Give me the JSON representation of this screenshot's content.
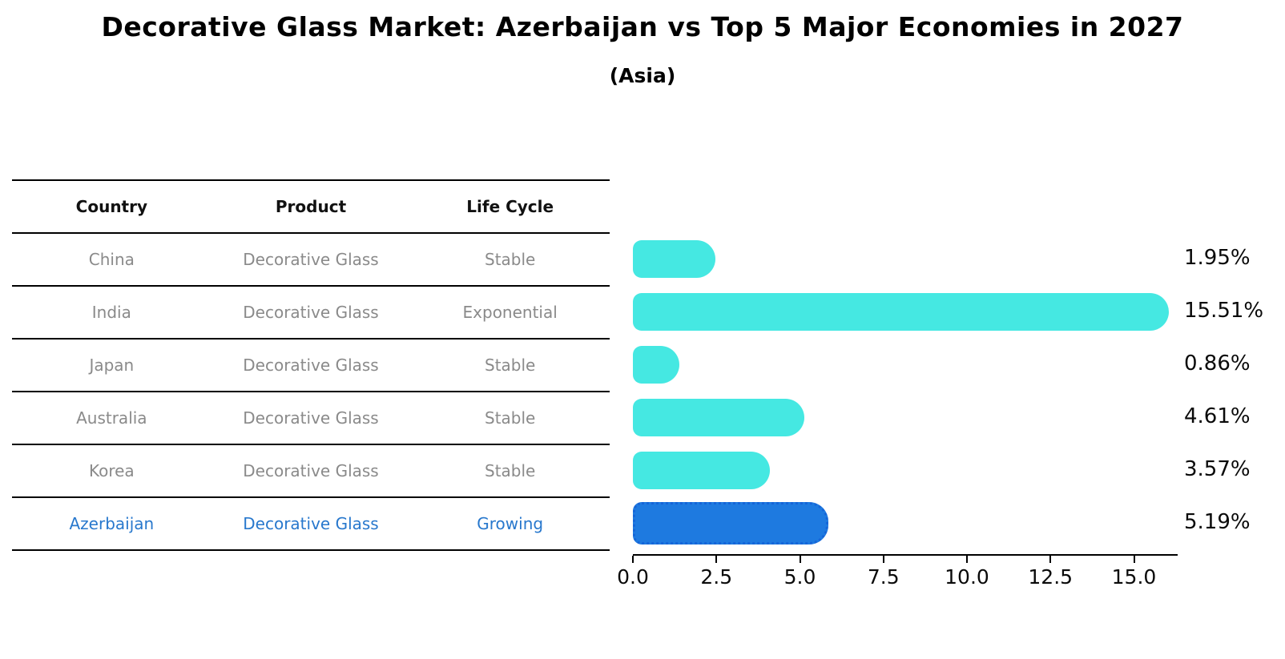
{
  "title": "Decorative Glass Market: Azerbaijan vs Top 5 Major Economies in 2027",
  "subtitle": "(Asia)",
  "table": {
    "headers": {
      "country": "Country",
      "product": "Product",
      "life_cycle": "Life Cycle"
    },
    "rows": [
      {
        "country": "China",
        "product": "Decorative Glass",
        "life_cycle": "Stable"
      },
      {
        "country": "India",
        "product": "Decorative Glass",
        "life_cycle": "Exponential"
      },
      {
        "country": "Japan",
        "product": "Decorative Glass",
        "life_cycle": "Stable"
      },
      {
        "country": "Australia",
        "product": "Decorative Glass",
        "life_cycle": "Stable"
      },
      {
        "country": "Korea",
        "product": "Decorative Glass",
        "life_cycle": "Stable"
      },
      {
        "country": "Azerbaijan",
        "product": "Decorative Glass",
        "life_cycle": "Growing"
      }
    ]
  },
  "chart_data": {
    "type": "bar",
    "orientation": "horizontal",
    "title": "Decorative Glass Market: Azerbaijan vs Top 5 Major Economies in 2027",
    "subtitle": "(Asia)",
    "categories": [
      "China",
      "India",
      "Japan",
      "Australia",
      "Korea",
      "Azerbaijan"
    ],
    "values": [
      1.95,
      15.51,
      0.86,
      4.61,
      3.57,
      5.19
    ],
    "value_labels": [
      "1.95%",
      "15.51%",
      "0.86%",
      "4.61%",
      "3.57%",
      "5.19%"
    ],
    "highlight_index": 5,
    "x_tick_values": [
      0,
      2.5,
      5,
      7.5,
      10,
      12.5,
      15
    ],
    "x_tick_labels": [
      "0.0",
      "2.5",
      "5.0",
      "7.5",
      "10.0",
      "12.5",
      "15.0"
    ],
    "xlim": [
      0,
      16.3
    ],
    "grid": false,
    "legend": "none",
    "bar_color": "#45e8e2",
    "highlight_bar_color": "#1e7ae0",
    "highlight_text_color": "#2878cd"
  }
}
